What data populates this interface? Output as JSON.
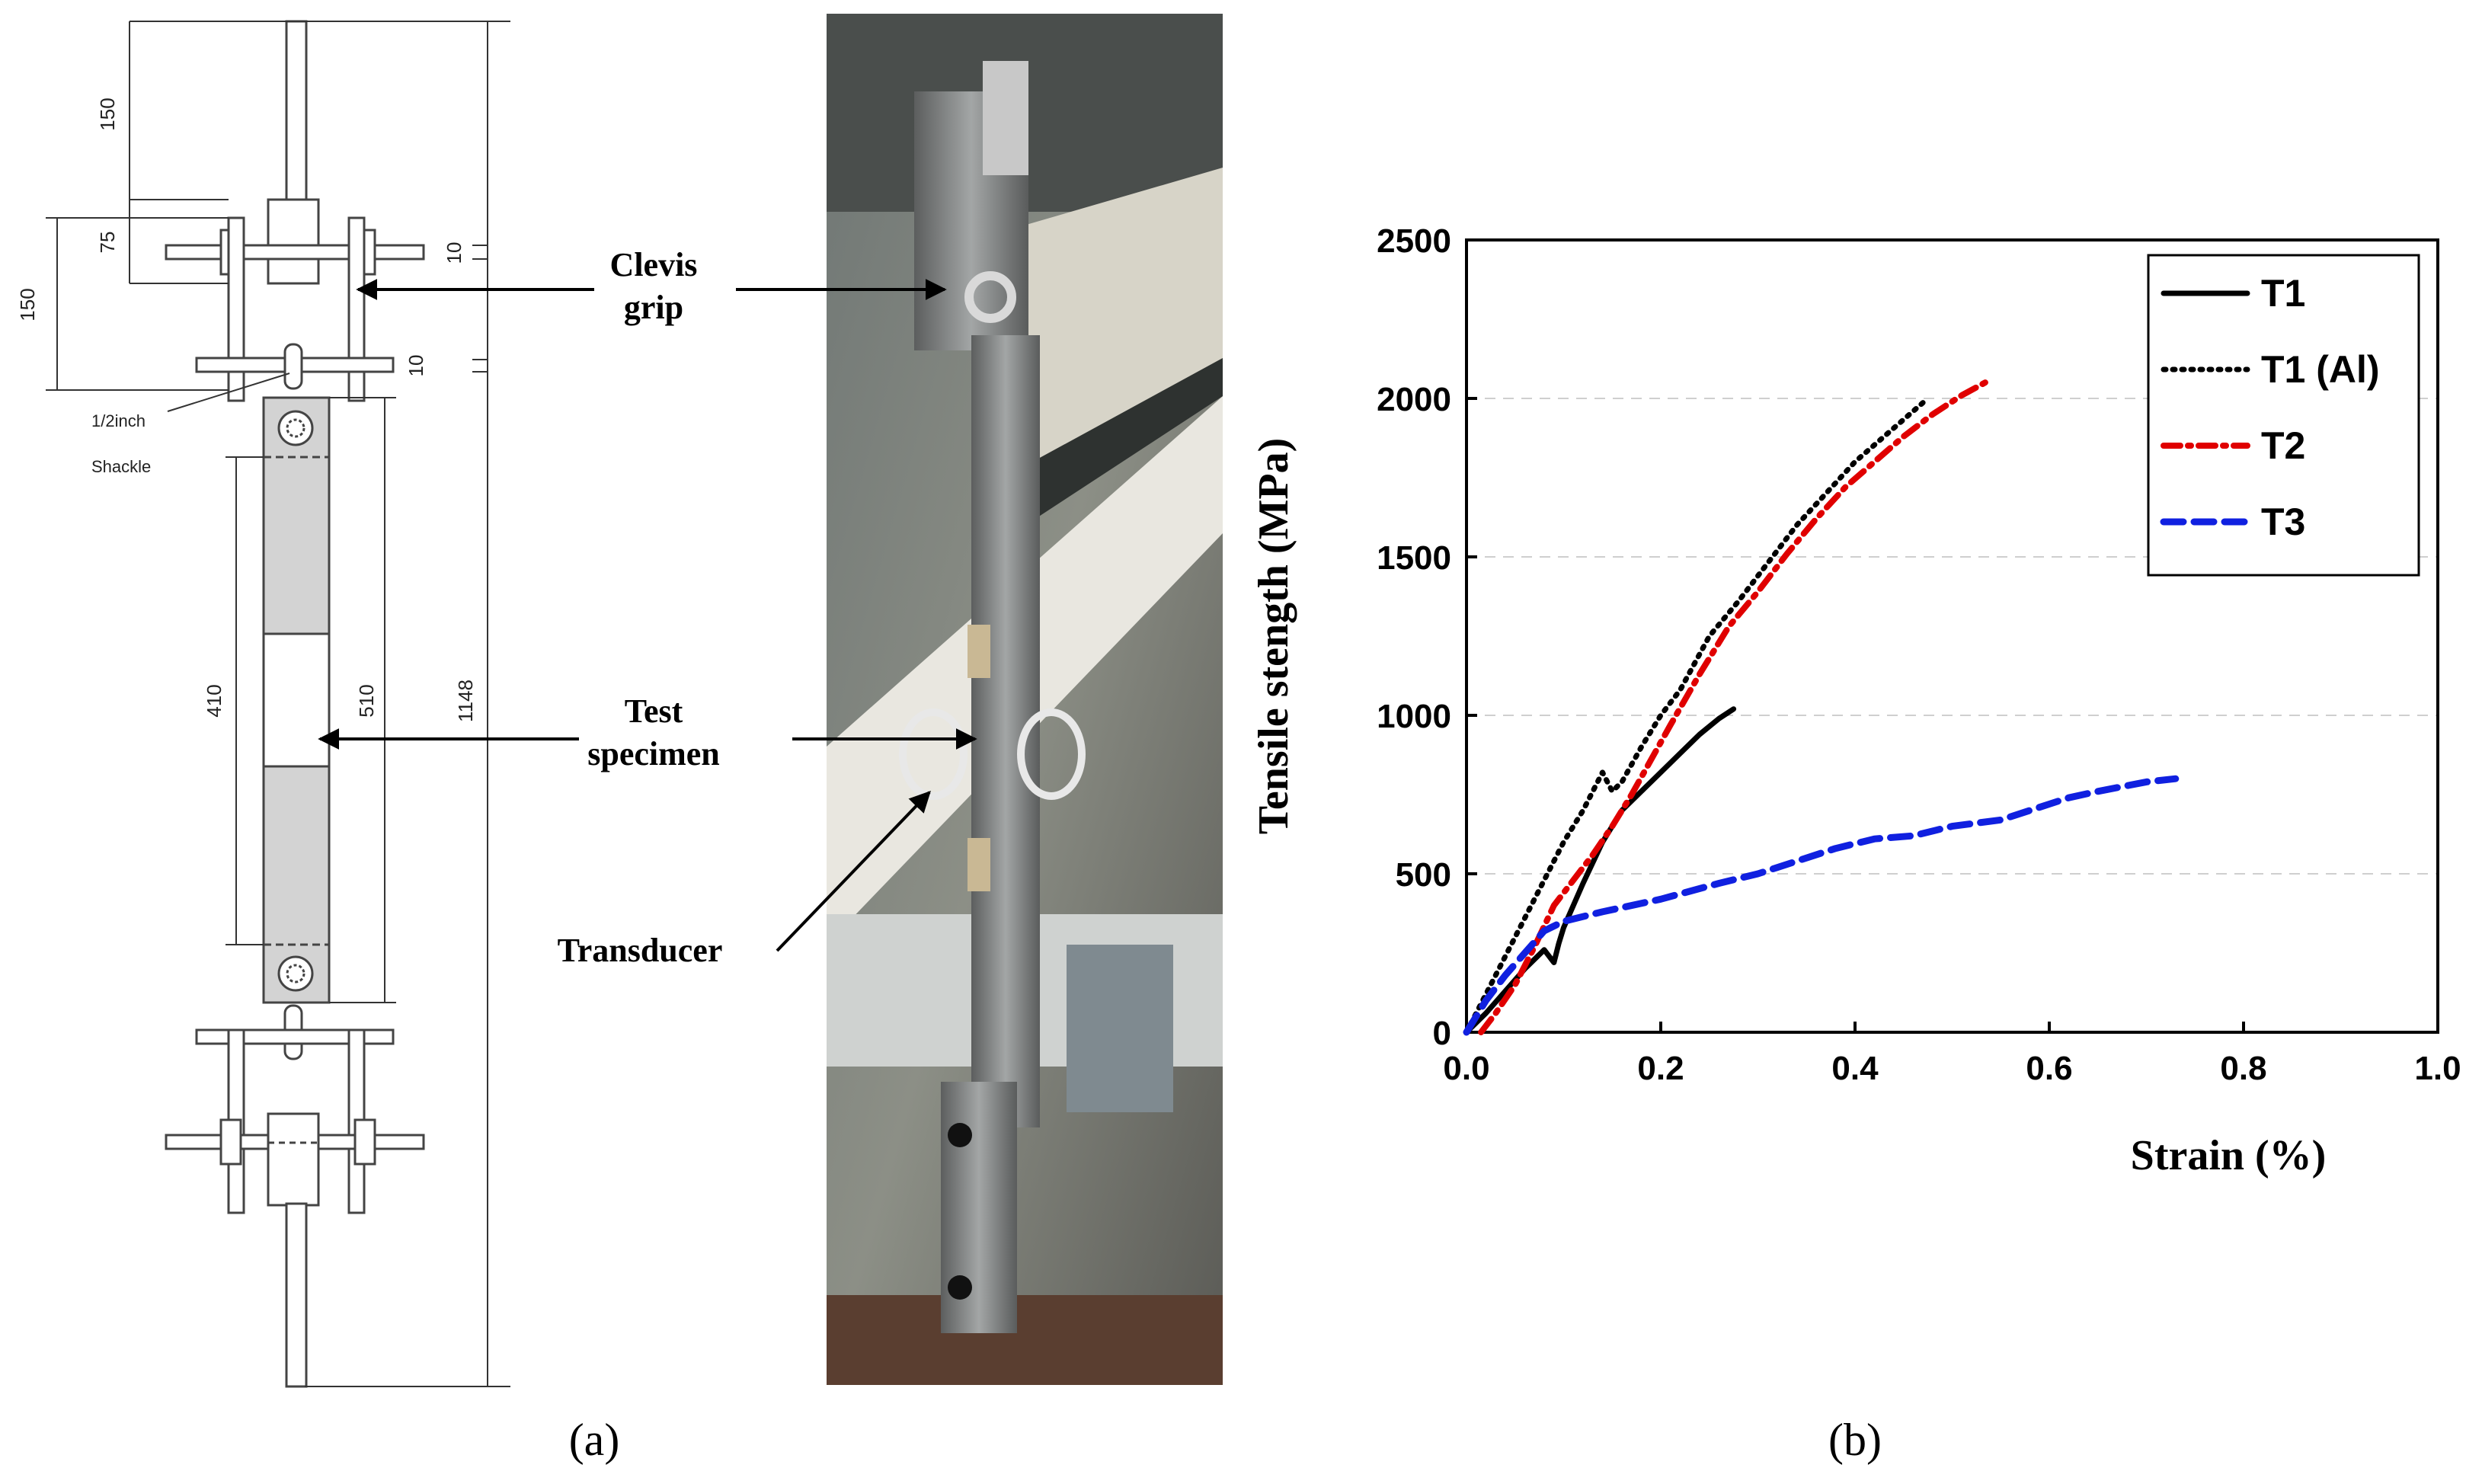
{
  "panel_a": {
    "caption": "(a)",
    "dimensions": {
      "d150_top": "150",
      "d75": "75",
      "d150_left": "150",
      "d10_upper": "10",
      "d10_lower": "10",
      "d410": "410",
      "d510": "510",
      "d1148": "1148"
    },
    "shackle_label_1": "1/2inch",
    "shackle_label_2": "Shackle",
    "callouts": {
      "clevis_1": "Clevis",
      "clevis_2": "grip",
      "test_1": "Test",
      "test_2": "specimen",
      "transducer": "Transducer"
    }
  },
  "panel_b": {
    "caption": "(b)"
  },
  "chart_data": {
    "type": "line",
    "xlabel": "Strain (%)",
    "ylabel": "Tensile stength (MPa)",
    "xlim": [
      0.0,
      1.0
    ],
    "ylim": [
      0,
      2500
    ],
    "xticks": [
      "0.0",
      "0.2",
      "0.4",
      "0.6",
      "0.8",
      "1.0"
    ],
    "yticks": [
      "0",
      "500",
      "1000",
      "1500",
      "2000",
      "2500"
    ],
    "grid": "horizontal dashed",
    "legend_position": "top-right",
    "series": [
      {
        "name": "T1",
        "color": "#000000",
        "style": "solid",
        "x": [
          0.0,
          0.02,
          0.04,
          0.06,
          0.08,
          0.09,
          0.095,
          0.1,
          0.12,
          0.14,
          0.16,
          0.18,
          0.2,
          0.22,
          0.24,
          0.26,
          0.275
        ],
        "y": [
          0,
          60,
          130,
          200,
          260,
          220,
          280,
          330,
          470,
          600,
          700,
          760,
          820,
          880,
          940,
          990,
          1020
        ]
      },
      {
        "name": "T1 (Al)",
        "color": "#000000",
        "style": "dotted",
        "x": [
          0.0,
          0.02,
          0.04,
          0.06,
          0.08,
          0.1,
          0.12,
          0.14,
          0.15,
          0.16,
          0.18,
          0.2,
          0.22,
          0.25,
          0.28,
          0.31,
          0.34,
          0.37,
          0.4,
          0.43,
          0.46,
          0.475
        ],
        "y": [
          0,
          120,
          240,
          360,
          480,
          600,
          700,
          820,
          760,
          790,
          900,
          1000,
          1080,
          1250,
          1360,
          1480,
          1600,
          1700,
          1800,
          1880,
          1960,
          2000
        ]
      },
      {
        "name": "T2",
        "color": "#e00000",
        "style": "dash-dot",
        "x": [
          0.015,
          0.03,
          0.05,
          0.07,
          0.09,
          0.11,
          0.13,
          0.15,
          0.17,
          0.19,
          0.21,
          0.24,
          0.27,
          0.3,
          0.33,
          0.36,
          0.39,
          0.42,
          0.45,
          0.48,
          0.51,
          0.54
        ],
        "y": [
          0,
          60,
          150,
          270,
          400,
          480,
          560,
          650,
          750,
          860,
          970,
          1130,
          1280,
          1390,
          1510,
          1620,
          1720,
          1800,
          1880,
          1950,
          2010,
          2060
        ]
      },
      {
        "name": "T3",
        "color": "#1020e0",
        "style": "dashed",
        "x": [
          0.0,
          0.02,
          0.04,
          0.06,
          0.08,
          0.1,
          0.14,
          0.2,
          0.26,
          0.3,
          0.34,
          0.38,
          0.42,
          0.46,
          0.5,
          0.55,
          0.6,
          0.62,
          0.65,
          0.7,
          0.73
        ],
        "y": [
          0,
          100,
          180,
          250,
          320,
          350,
          380,
          420,
          470,
          500,
          540,
          580,
          610,
          620,
          650,
          670,
          720,
          740,
          760,
          790,
          800
        ]
      }
    ]
  }
}
